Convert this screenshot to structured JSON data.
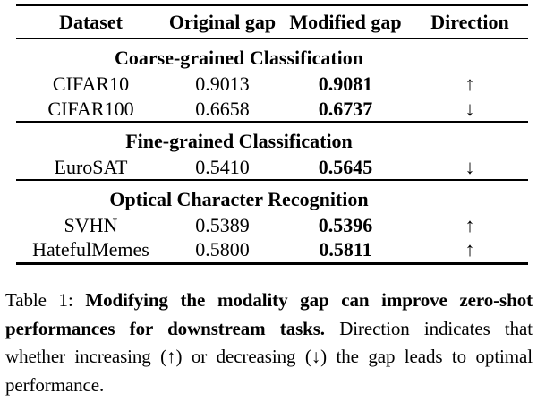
{
  "page": {
    "background_color": "#ffffff",
    "text_color": "#000000",
    "rule_color": "#000000"
  },
  "table": {
    "columns": [
      {
        "label": "Dataset"
      },
      {
        "label": "Original gap"
      },
      {
        "label": "Modified gap"
      },
      {
        "label": "Direction"
      }
    ],
    "sections": [
      {
        "title": "Coarse-grained Classification",
        "rows": [
          {
            "dataset": "CIFAR10",
            "original_gap": "0.9013",
            "modified_gap": "0.9081",
            "direction": "↑"
          },
          {
            "dataset": "CIFAR100",
            "original_gap": "0.6658",
            "modified_gap": "0.6737",
            "direction": "↓"
          }
        ]
      },
      {
        "title": "Fine-grained Classification",
        "rows": [
          {
            "dataset": "EuroSAT",
            "original_gap": "0.5410",
            "modified_gap": "0.5645",
            "direction": "↓"
          }
        ]
      },
      {
        "title": "Optical Character Recognition",
        "rows": [
          {
            "dataset": "SVHN",
            "original_gap": "0.5389",
            "modified_gap": "0.5396",
            "direction": "↑"
          },
          {
            "dataset": "HatefulMemes",
            "original_gap": "0.5800",
            "modified_gap": "0.5811",
            "direction": "↑"
          }
        ]
      }
    ]
  },
  "caption": {
    "lines": [
      {
        "parts": [
          {
            "text": "Table 1: ",
            "bold": false
          },
          {
            "text": "Modifying the modality gap can improve zero-shot",
            "bold": true
          }
        ]
      },
      {
        "parts": [
          {
            "text": "performances for downstream tasks.",
            "bold": true
          },
          {
            "text": " Direction indicates that",
            "bold": false
          }
        ]
      },
      {
        "parts": [
          {
            "text": "whether increasing (↑) or decreasing (↓) the gap leads to optimal",
            "bold": false
          }
        ]
      },
      {
        "parts": [
          {
            "text": "performance.",
            "bold": false
          }
        ]
      }
    ]
  }
}
